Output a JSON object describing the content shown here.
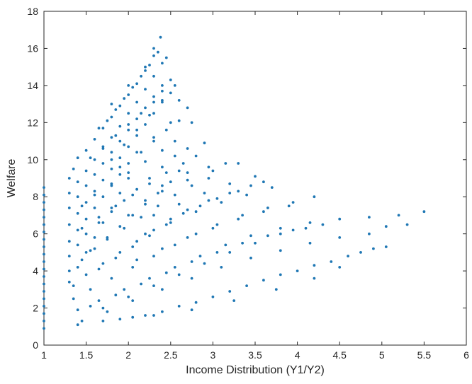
{
  "chart_data": {
    "type": "scatter",
    "title": "",
    "xlabel": "Income Distribution (Y1/Y2)",
    "ylabel": "Welfare",
    "xlim": [
      1,
      6
    ],
    "ylim": [
      0,
      18
    ],
    "x_ticks": [
      1,
      1.5,
      2,
      2.5,
      3,
      3.5,
      4,
      4.5,
      5,
      5.5,
      6
    ],
    "x_tick_labels": [
      "1",
      "1.5",
      "2",
      "2.5",
      "3",
      "3.5",
      "4",
      "4.5",
      "5",
      "5.5",
      "6"
    ],
    "y_ticks": [
      0,
      2,
      4,
      6,
      8,
      10,
      12,
      14,
      16,
      18
    ],
    "y_tick_labels": [
      "0",
      "2",
      "4",
      "6",
      "8",
      "10",
      "12",
      "14",
      "16",
      "18"
    ],
    "grid": false,
    "legend": "none",
    "marker_color": "#1f77b4",
    "marker_size": "small",
    "series": [
      {
        "points": [
          [
            1.0,
            0.9
          ],
          [
            1.0,
            1.3
          ],
          [
            1.0,
            1.7
          ],
          [
            1.0,
            2.1
          ],
          [
            1.0,
            2.5
          ],
          [
            1.0,
            2.9
          ],
          [
            1.0,
            3.3
          ],
          [
            1.0,
            3.7
          ],
          [
            1.0,
            4.1
          ],
          [
            1.0,
            4.5
          ],
          [
            1.0,
            4.9
          ],
          [
            1.0,
            5.3
          ],
          [
            1.0,
            5.7
          ],
          [
            1.0,
            6.1
          ],
          [
            1.0,
            6.5
          ],
          [
            1.0,
            6.9
          ],
          [
            1.0,
            7.3
          ],
          [
            1.0,
            7.7
          ],
          [
            1.0,
            8.1
          ],
          [
            1.0,
            8.5
          ],
          [
            1.3,
            9.0
          ],
          [
            1.35,
            9.5
          ],
          [
            1.4,
            10.1
          ],
          [
            1.5,
            10.5
          ],
          [
            1.6,
            11.1
          ],
          [
            1.7,
            11.7
          ],
          [
            1.8,
            12.3
          ],
          [
            1.9,
            12.9
          ],
          [
            2.0,
            13.5
          ],
          [
            2.1,
            14.1
          ],
          [
            2.2,
            14.8
          ],
          [
            2.3,
            15.6
          ],
          [
            2.38,
            16.6
          ],
          [
            1.3,
            8.2
          ],
          [
            1.4,
            8.8
          ],
          [
            1.5,
            9.4
          ],
          [
            1.6,
            10.0
          ],
          [
            1.7,
            10.6
          ],
          [
            1.8,
            11.2
          ],
          [
            1.9,
            11.8
          ],
          [
            2.0,
            12.5
          ],
          [
            2.1,
            13.1
          ],
          [
            2.2,
            13.8
          ],
          [
            2.3,
            14.5
          ],
          [
            2.4,
            15.2
          ],
          [
            2.45,
            15.5
          ],
          [
            1.3,
            7.4
          ],
          [
            1.4,
            8.0
          ],
          [
            1.5,
            8.6
          ],
          [
            1.6,
            9.2
          ],
          [
            1.7,
            9.8
          ],
          [
            1.8,
            10.4
          ],
          [
            1.9,
            11.0
          ],
          [
            2.0,
            11.6
          ],
          [
            2.1,
            12.2
          ],
          [
            2.2,
            12.8
          ],
          [
            2.3,
            13.4
          ],
          [
            2.4,
            14.0
          ],
          [
            2.5,
            14.3
          ],
          [
            1.3,
            6.5
          ],
          [
            1.4,
            7.1
          ],
          [
            1.5,
            7.7
          ],
          [
            1.6,
            8.3
          ],
          [
            1.7,
            8.9
          ],
          [
            1.8,
            9.5
          ],
          [
            1.9,
            10.1
          ],
          [
            2.0,
            10.7
          ],
          [
            2.1,
            11.3
          ],
          [
            2.2,
            11.9
          ],
          [
            2.3,
            12.5
          ],
          [
            2.4,
            13.1
          ],
          [
            2.5,
            13.6
          ],
          [
            2.6,
            13.2
          ],
          [
            1.3,
            5.6
          ],
          [
            1.4,
            6.2
          ],
          [
            1.5,
            6.8
          ],
          [
            1.6,
            7.4
          ],
          [
            1.7,
            8.0
          ],
          [
            1.8,
            8.6
          ],
          [
            1.9,
            9.2
          ],
          [
            2.0,
            9.8
          ],
          [
            2.15,
            10.4
          ],
          [
            2.3,
            11.0
          ],
          [
            2.45,
            11.6
          ],
          [
            2.6,
            12.1
          ],
          [
            2.75,
            12.0
          ],
          [
            1.3,
            4.8
          ],
          [
            1.4,
            5.4
          ],
          [
            1.5,
            6.0
          ],
          [
            1.65,
            6.6
          ],
          [
            1.8,
            7.2
          ],
          [
            1.95,
            7.8
          ],
          [
            2.1,
            8.4
          ],
          [
            2.25,
            9.0
          ],
          [
            2.4,
            9.6
          ],
          [
            2.55,
            10.2
          ],
          [
            2.7,
            10.6
          ],
          [
            2.9,
            10.9
          ],
          [
            1.3,
            4.0
          ],
          [
            1.45,
            4.6
          ],
          [
            1.6,
            5.2
          ],
          [
            1.75,
            5.8
          ],
          [
            1.9,
            6.4
          ],
          [
            2.05,
            7.0
          ],
          [
            2.2,
            7.6
          ],
          [
            2.35,
            8.2
          ],
          [
            2.5,
            8.8
          ],
          [
            2.7,
            9.3
          ],
          [
            2.95,
            9.6
          ],
          [
            3.15,
            9.8
          ],
          [
            1.35,
            3.2
          ],
          [
            1.5,
            3.8
          ],
          [
            1.7,
            4.4
          ],
          [
            1.9,
            5.0
          ],
          [
            2.1,
            5.6
          ],
          [
            2.3,
            6.2
          ],
          [
            2.5,
            6.8
          ],
          [
            2.7,
            7.3
          ],
          [
            2.95,
            7.8
          ],
          [
            3.2,
            8.2
          ],
          [
            3.45,
            8.6
          ],
          [
            3.6,
            8.8
          ],
          [
            1.35,
            2.5
          ],
          [
            1.55,
            3.0
          ],
          [
            1.8,
            3.6
          ],
          [
            2.05,
            4.2
          ],
          [
            2.3,
            4.8
          ],
          [
            2.55,
            5.4
          ],
          [
            2.8,
            6.0
          ],
          [
            3.05,
            6.5
          ],
          [
            3.35,
            7.0
          ],
          [
            3.65,
            7.4
          ],
          [
            3.95,
            7.7
          ],
          [
            4.2,
            8.0
          ],
          [
            1.4,
            1.9
          ],
          [
            1.65,
            2.4
          ],
          [
            1.95,
            3.0
          ],
          [
            2.25,
            3.6
          ],
          [
            2.55,
            4.2
          ],
          [
            2.85,
            4.8
          ],
          [
            3.15,
            5.4
          ],
          [
            3.45,
            5.9
          ],
          [
            3.8,
            6.3
          ],
          [
            4.15,
            6.6
          ],
          [
            4.5,
            6.8
          ],
          [
            4.85,
            6.9
          ],
          [
            5.2,
            7.0
          ],
          [
            5.5,
            7.2
          ],
          [
            1.45,
            1.3
          ],
          [
            1.75,
            1.8
          ],
          [
            2.05,
            2.4
          ],
          [
            2.4,
            3.0
          ],
          [
            2.75,
            3.6
          ],
          [
            3.1,
            4.2
          ],
          [
            3.45,
            4.7
          ],
          [
            3.8,
            5.1
          ],
          [
            4.15,
            5.5
          ],
          [
            4.5,
            5.8
          ],
          [
            4.85,
            6.0
          ],
          [
            5.05,
            6.4
          ],
          [
            5.3,
            6.5
          ],
          [
            1.4,
            1.1
          ],
          [
            1.7,
            1.3
          ],
          [
            2.05,
            1.5
          ],
          [
            2.4,
            1.8
          ],
          [
            2.8,
            2.3
          ],
          [
            3.2,
            2.9
          ],
          [
            3.6,
            3.5
          ],
          [
            4.0,
            4.0
          ],
          [
            4.4,
            4.5
          ],
          [
            4.75,
            5.0
          ],
          [
            5.05,
            5.3
          ],
          [
            1.9,
            1.4
          ],
          [
            2.3,
            1.6
          ],
          [
            2.75,
            1.9
          ],
          [
            3.25,
            2.4
          ],
          [
            3.75,
            3.0
          ],
          [
            4.2,
            3.6
          ],
          [
            4.5,
            4.2
          ],
          [
            1.55,
            2.1
          ],
          [
            1.85,
            2.7
          ],
          [
            2.15,
            3.3
          ],
          [
            2.45,
            3.9
          ],
          [
            2.75,
            4.5
          ],
          [
            3.05,
            5.0
          ],
          [
            3.35,
            5.5
          ],
          [
            3.65,
            5.9
          ],
          [
            3.95,
            6.2
          ],
          [
            4.3,
            6.5
          ],
          [
            1.65,
            4.1
          ],
          [
            1.85,
            4.7
          ],
          [
            2.05,
            5.3
          ],
          [
            2.25,
            5.9
          ],
          [
            2.45,
            6.5
          ],
          [
            2.65,
            7.1
          ],
          [
            2.85,
            7.5
          ],
          [
            3.05,
            7.9
          ],
          [
            3.3,
            8.3
          ],
          [
            1.55,
            5.1
          ],
          [
            1.75,
            5.7
          ],
          [
            1.95,
            6.3
          ],
          [
            2.15,
            6.9
          ],
          [
            2.35,
            7.5
          ],
          [
            2.55,
            8.1
          ],
          [
            2.75,
            8.6
          ],
          [
            2.95,
            9.0
          ],
          [
            1.45,
            6.3
          ],
          [
            1.65,
            6.9
          ],
          [
            1.85,
            7.5
          ],
          [
            2.05,
            8.1
          ],
          [
            2.25,
            8.7
          ],
          [
            2.45,
            9.3
          ],
          [
            2.65,
            9.8
          ],
          [
            1.45,
            7.5
          ],
          [
            1.6,
            8.1
          ],
          [
            1.8,
            8.7
          ],
          [
            2.0,
            9.3
          ],
          [
            2.2,
            9.9
          ],
          [
            2.4,
            10.5
          ],
          [
            2.55,
            11.0
          ],
          [
            1.55,
            10.1
          ],
          [
            1.7,
            10.7
          ],
          [
            1.85,
            11.3
          ],
          [
            2.0,
            11.9
          ],
          [
            2.15,
            12.5
          ],
          [
            2.3,
            13.1
          ],
          [
            2.4,
            13.7
          ],
          [
            1.75,
            12.1
          ],
          [
            1.85,
            12.7
          ],
          [
            1.95,
            13.3
          ],
          [
            2.05,
            13.9
          ],
          [
            2.15,
            14.5
          ],
          [
            2.25,
            15.1
          ],
          [
            2.35,
            15.8
          ],
          [
            1.65,
            11.7
          ],
          [
            1.8,
            13.0
          ],
          [
            2.0,
            14.0
          ],
          [
            2.2,
            15.0
          ],
          [
            2.3,
            16.0
          ],
          [
            1.3,
            3.4
          ],
          [
            1.4,
            4.2
          ],
          [
            1.5,
            5.0
          ],
          [
            1.6,
            5.8
          ],
          [
            1.7,
            6.6
          ],
          [
            1.8,
            7.4
          ],
          [
            1.9,
            8.2
          ],
          [
            2.0,
            9.0
          ],
          [
            1.7,
            2.0
          ],
          [
            2.0,
            2.6
          ],
          [
            2.3,
            3.2
          ],
          [
            2.6,
            3.8
          ],
          [
            2.9,
            4.4
          ],
          [
            3.2,
            5.0
          ],
          [
            3.5,
            5.5
          ],
          [
            3.8,
            6.0
          ],
          [
            4.1,
            6.3
          ],
          [
            2.2,
            1.6
          ],
          [
            2.6,
            2.1
          ],
          [
            3.0,
            2.6
          ],
          [
            3.4,
            3.2
          ],
          [
            3.8,
            3.8
          ],
          [
            4.2,
            4.3
          ],
          [
            4.6,
            4.8
          ],
          [
            4.9,
            5.2
          ],
          [
            2.1,
            4.6
          ],
          [
            2.4,
            5.2
          ],
          [
            2.7,
            5.8
          ],
          [
            3.0,
            6.3
          ],
          [
            3.3,
            6.8
          ],
          [
            3.6,
            7.2
          ],
          [
            3.9,
            7.5
          ],
          [
            2.2,
            6.0
          ],
          [
            2.5,
            6.6
          ],
          [
            2.8,
            7.2
          ],
          [
            3.1,
            7.7
          ],
          [
            3.4,
            8.1
          ],
          [
            3.7,
            8.5
          ],
          [
            2.3,
            7.0
          ],
          [
            2.6,
            7.6
          ],
          [
            2.9,
            8.2
          ],
          [
            3.2,
            8.7
          ],
          [
            3.5,
            9.1
          ],
          [
            2.4,
            8.3
          ],
          [
            2.7,
            8.9
          ],
          [
            3.0,
            9.4
          ],
          [
            3.3,
            9.8
          ],
          [
            2.0,
            7.0
          ],
          [
            2.2,
            7.8
          ],
          [
            2.4,
            8.6
          ],
          [
            2.6,
            9.4
          ],
          [
            2.8,
            10.2
          ],
          [
            1.9,
            9.6
          ],
          [
            2.1,
            10.4
          ],
          [
            2.3,
            11.2
          ],
          [
            2.5,
            12.0
          ],
          [
            2.7,
            12.8
          ],
          [
            1.8,
            10.0
          ],
          [
            1.95,
            10.8
          ],
          [
            2.1,
            11.6
          ],
          [
            2.25,
            12.4
          ],
          [
            2.4,
            13.2
          ],
          [
            2.55,
            14.0
          ]
        ]
      }
    ]
  }
}
